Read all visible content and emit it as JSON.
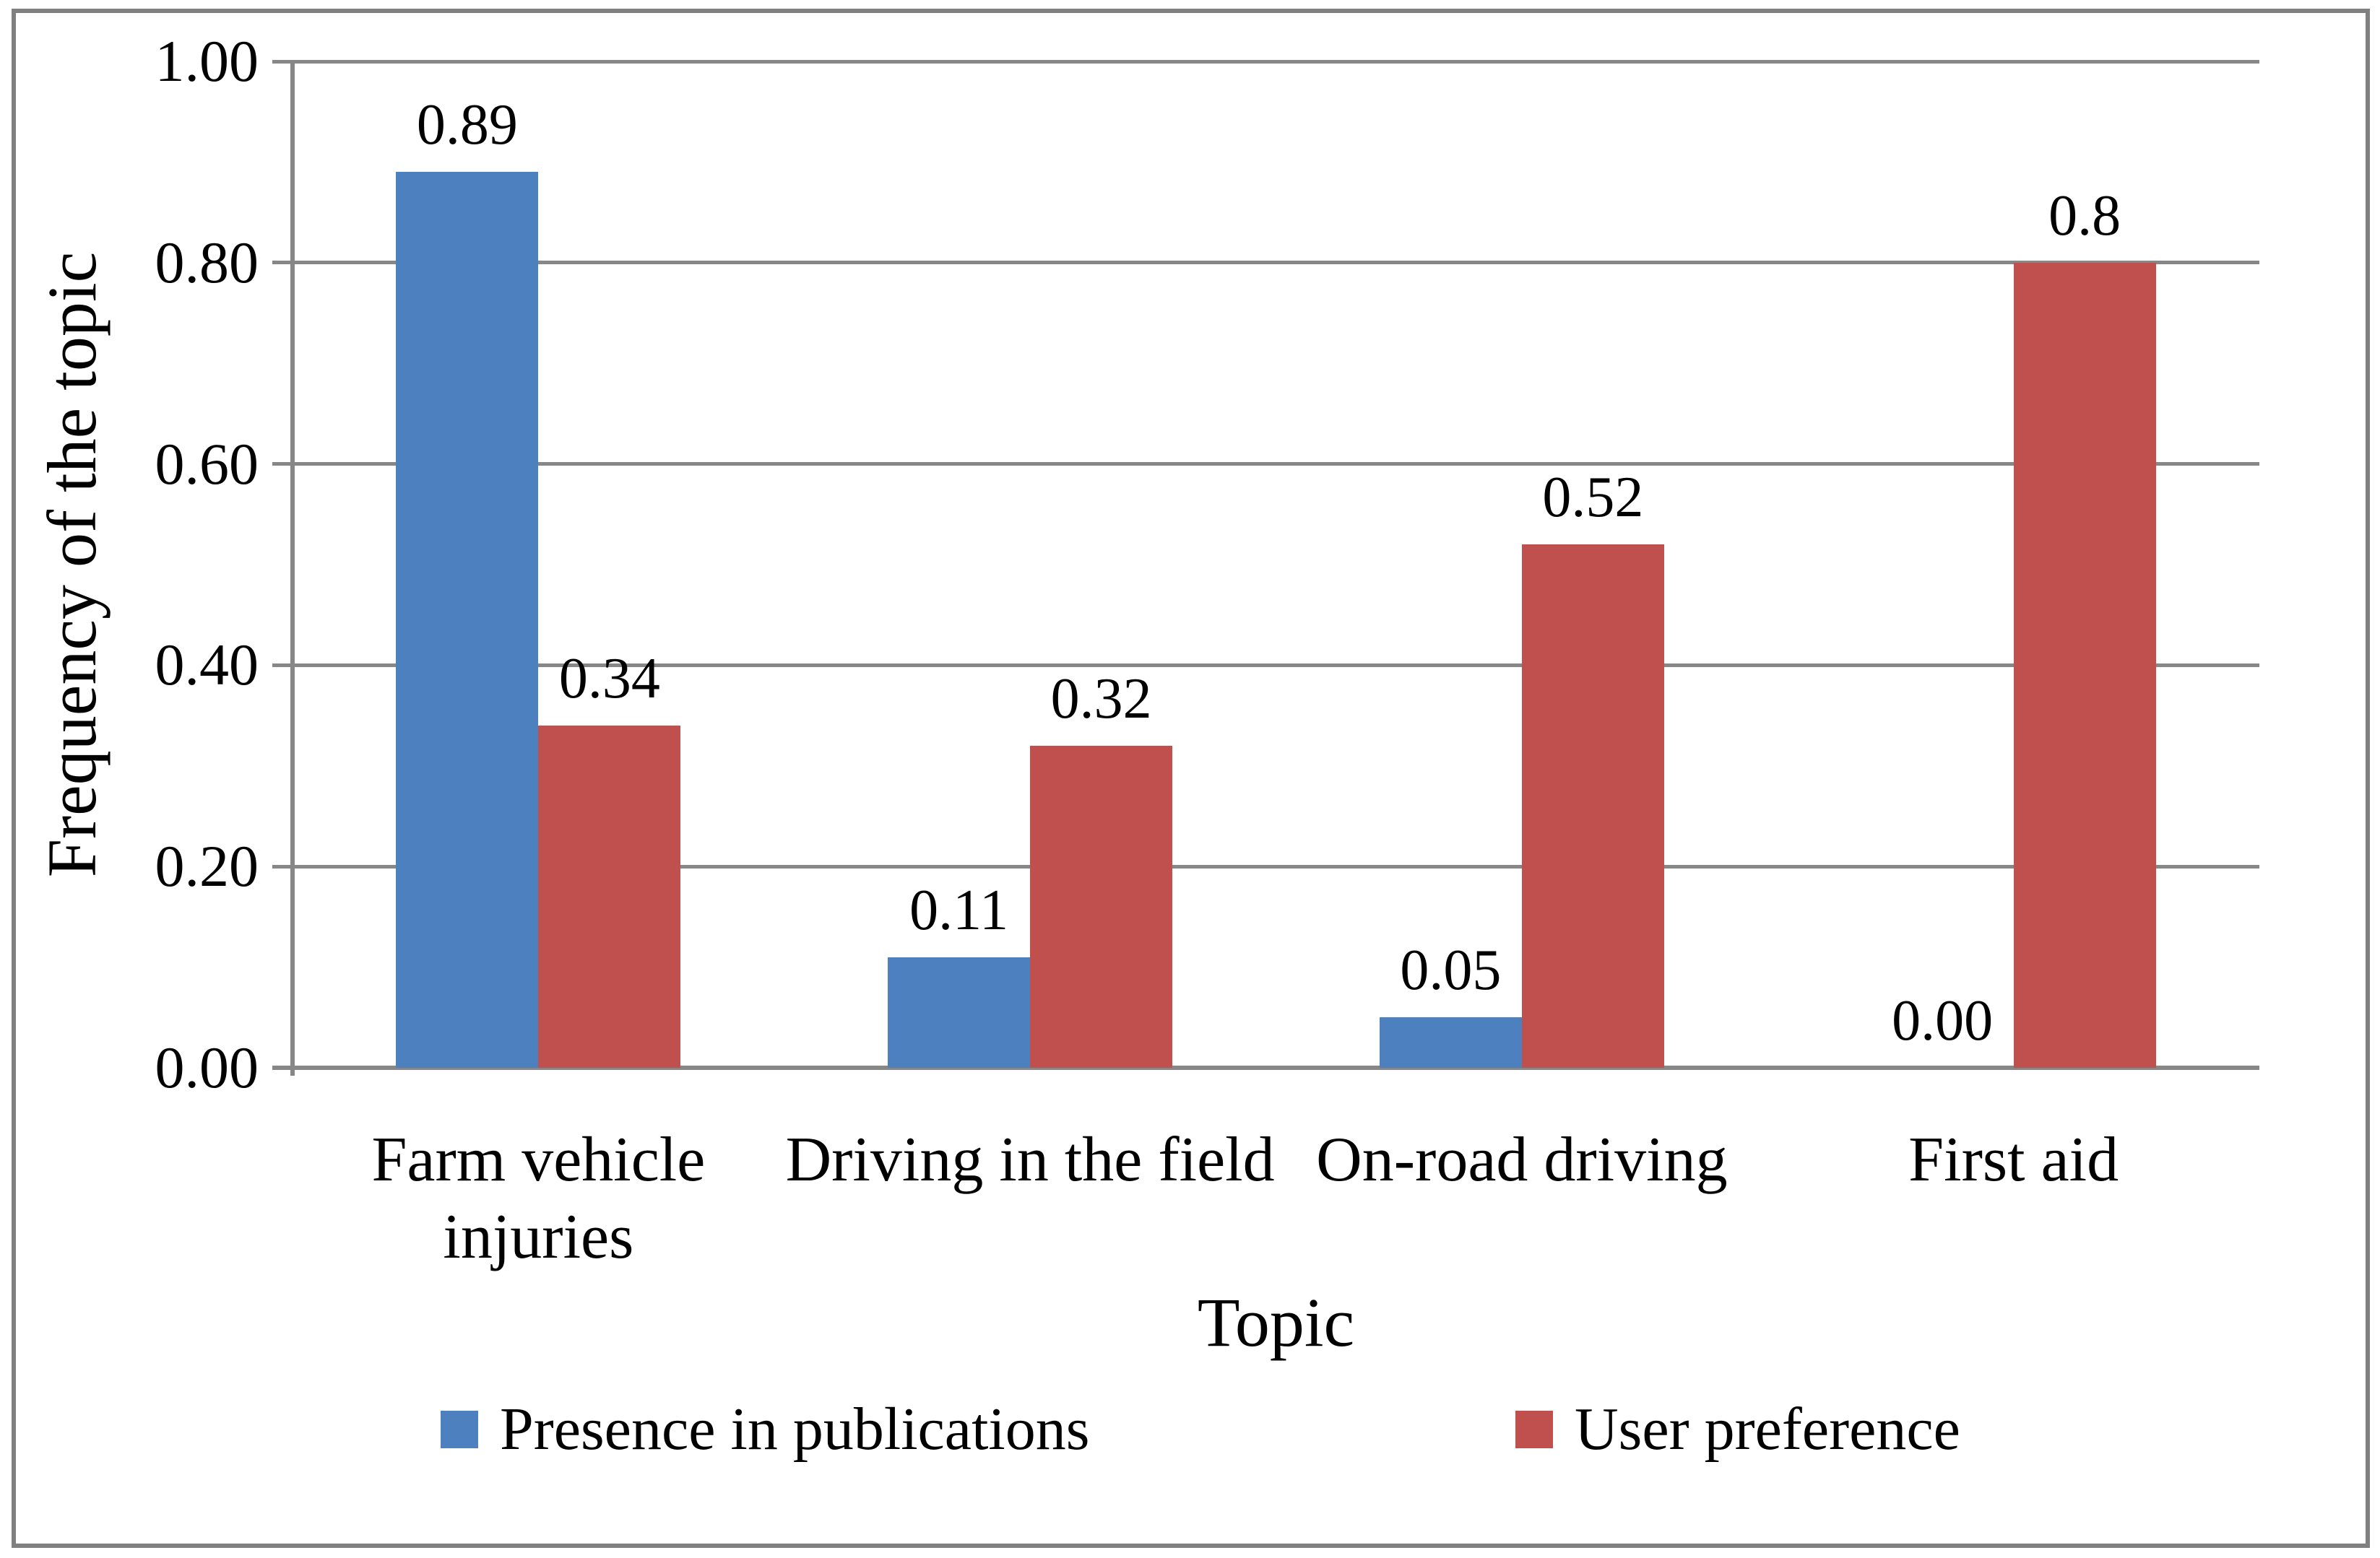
{
  "chart_data": {
    "type": "bar",
    "title": "",
    "categories": [
      "Farm vehicle injuries",
      "Driving in the field",
      "On-road driving",
      "First aid"
    ],
    "series": [
      {
        "name": "Presence in publications",
        "color": "#4D80BE",
        "values": [
          0.89,
          0.11,
          0.05,
          0.0
        ],
        "value_labels": [
          "0.89",
          "0.11",
          "0.05",
          "0.00"
        ]
      },
      {
        "name": "User preference",
        "color": "#C0504D",
        "values": [
          0.34,
          0.32,
          0.52,
          0.8
        ],
        "value_labels": [
          "0.34",
          "0.32",
          "0.52",
          "0.8"
        ]
      }
    ],
    "xlabel": "Topic",
    "ylabel": "Frequency of the topic",
    "ylim": [
      0,
      1
    ],
    "yticks": [
      0,
      0.2,
      0.4,
      0.6,
      0.8,
      1
    ],
    "ytick_labels": [
      "0.00",
      "0.20",
      "0.40",
      "0.60",
      "0.80",
      "1.00"
    ],
    "grid": true,
    "legend_position": "bottom",
    "colors": {
      "grid": "#878787",
      "axis": "#878787",
      "frame": "#808080",
      "text": "#000000",
      "background": "#FFFFFF"
    }
  }
}
